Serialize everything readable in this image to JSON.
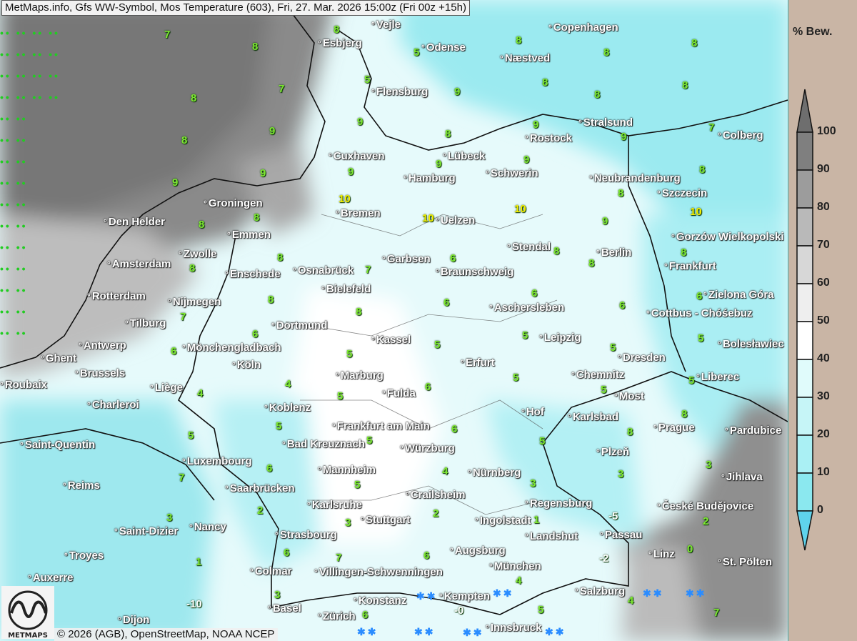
{
  "title": "MetMaps.info, Gfs WW-Symbol, Mos Temperature (603), Fri, 27. Mar. 2026 15:00z (Fri 00z +15h)",
  "copyright": "© 2026 (AGB), OpenStreetMap, NOAA NCEP",
  "logo_text": "METMAPS",
  "legend": {
    "title": "% Bew.",
    "ticks": [
      "100",
      "90",
      "80",
      "70",
      "60",
      "50",
      "40",
      "30",
      "20",
      "10",
      "0"
    ],
    "colors": [
      "#6e6e6e",
      "#7f7f7f",
      "#9c9c9c",
      "#b9b9b9",
      "#d7d7d7",
      "#eeeeee",
      "#ffffff",
      "#e0fbfb",
      "#c6f5f7",
      "#aaf0f4",
      "#8be8ef",
      "#5fd3ec"
    ]
  },
  "cities": [
    "Vejle",
    "Esbjerg",
    "Odense",
    "Næstved",
    "Copenhagen",
    "Flensburg",
    "Stralsund",
    "Rostock",
    "Colberg",
    "Cuxhaven",
    "Lübeck",
    "Hamburg",
    "Schwerin",
    "Neubrandenburg",
    "Szczecin",
    "Groningen",
    "Bremen",
    "Den Helder",
    "Uelzen",
    "Emmen",
    "Gorzów Wielkopolski",
    "Zwolle",
    "Stendal",
    "Berlin",
    "Amsterdam",
    "Enschede",
    "Osnabrück",
    "Garbsen",
    "Braunschweig",
    "Frankfurt",
    "Rotterdam",
    "Bielefeld",
    "Nijmegen",
    "Aschersleben",
    "Zielona Góra",
    "Cottbus - Chóśebuz",
    "Tilburg",
    "Dortmund",
    "Kassel",
    "Leipzig",
    "Antwerp",
    "Mönchengladbach",
    "Bolesławiec",
    "Ghent",
    "Dresden",
    "Köln",
    "Erfurt",
    "Marburg",
    "Brussels",
    "Chemnitz",
    "Liberec",
    "Roubaix",
    "Liège",
    "Fulda",
    "Charleroi",
    "Most",
    "Koblenz",
    "Hof",
    "Karlsbad",
    "Frankfurt am Main",
    "Prague",
    "Pardubice",
    "Saint-Quentin",
    "Bad Kreuznach",
    "Würzburg",
    "Luxembourg",
    "Plzeň",
    "Mannheim",
    "Nürnberg",
    "Jihlava",
    "Reims",
    "Saarbrücken",
    "Crailsheim",
    "Karlsruhe",
    "Regensburg",
    "České Budějovice",
    "Stuttgart",
    "Ingolstadt",
    "Nancy",
    "Saint-Dizier",
    "Strasbourg",
    "Landshut",
    "Passau",
    "Troyes",
    "Augsburg",
    "Linz",
    "St. Pölten",
    "Colmar",
    "Villingen-Schwenningen",
    "München",
    "Auxerre",
    "Salzburg",
    "Konstanz",
    "Kempten",
    "Basel",
    "Zürich",
    "Innsbruck",
    "Dijon"
  ],
  "temperatures": [
    "7",
    "8",
    "8",
    "5",
    "8",
    "8",
    "8",
    "8",
    "7",
    "5",
    "9",
    "8",
    "8",
    "8",
    "8",
    "9",
    "9",
    "8",
    "9",
    "9",
    "7",
    "9",
    "9",
    "9",
    "9",
    "9",
    "8",
    "8",
    "8",
    "8",
    "10",
    "10",
    "10",
    "9",
    "10",
    "8",
    "8",
    "7",
    "6",
    "8",
    "8",
    "8",
    "7",
    "8",
    "8",
    "6",
    "6",
    "6",
    "6",
    "6",
    "6",
    "5",
    "5",
    "5",
    "5",
    "5",
    "4",
    "4",
    "5",
    "6",
    "5",
    "5",
    "5",
    "5",
    "5",
    "5",
    "6",
    "5",
    "8",
    "8",
    "7",
    "6",
    "5",
    "4",
    "3",
    "3",
    "3",
    "3",
    "2",
    "3",
    "2",
    "1",
    "-5",
    "2",
    "1",
    "6",
    "7",
    "6",
    "4",
    "-2",
    "0",
    "-10",
    "3",
    "6",
    "-0",
    "5",
    "4",
    "7"
  ],
  "snow_symbol": "✱✱"
}
